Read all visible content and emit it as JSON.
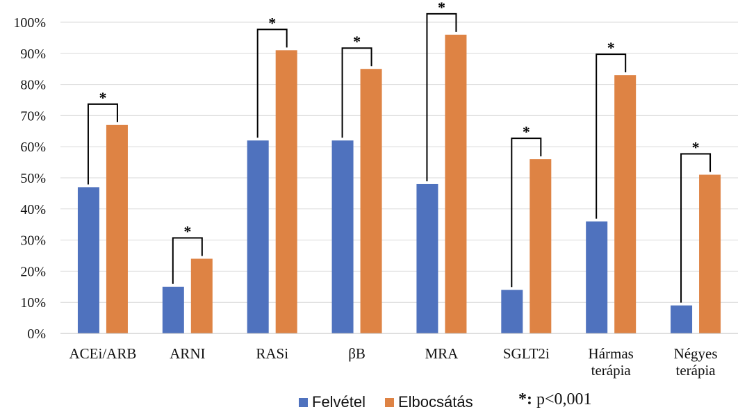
{
  "chart_data": {
    "type": "bar",
    "categories": [
      [
        "ACEi/ARB"
      ],
      [
        "ARNI"
      ],
      [
        "RASi"
      ],
      [
        "βB"
      ],
      [
        "MRA"
      ],
      [
        "SGLT2i"
      ],
      [
        "Hármas",
        "terápia"
      ],
      [
        "Négyes",
        "terápia"
      ]
    ],
    "series": [
      {
        "name": "Felvétel",
        "color": "#4f72be",
        "values": [
          47,
          15,
          62,
          62,
          48,
          14,
          36,
          9
        ]
      },
      {
        "name": "Elbocsátás",
        "color": "#de8344",
        "values": [
          67,
          24,
          91,
          85,
          96,
          56,
          83,
          51
        ]
      }
    ],
    "ylim": [
      0,
      100
    ],
    "yticks": [
      "0%",
      "10%",
      "20%",
      "30%",
      "40%",
      "50%",
      "60%",
      "70%",
      "80%",
      "90%",
      "100%"
    ],
    "grid": true,
    "significance": {
      "marker": "*",
      "all_categories": true
    },
    "legend_position": "bottom"
  },
  "legend": {
    "series1": "Felvétel",
    "series2": "Elbocsátás",
    "note_marker": "*:",
    "note_text": " p<0,001"
  }
}
